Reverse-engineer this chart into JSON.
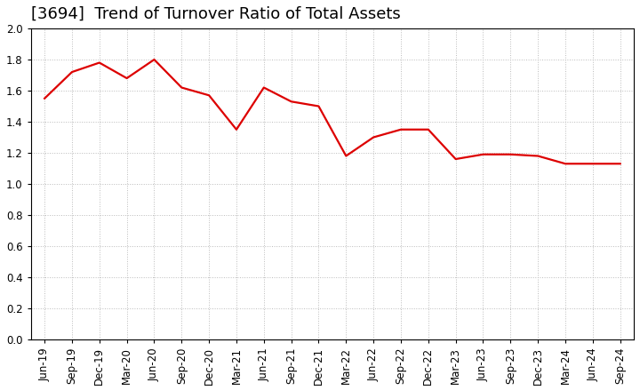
{
  "title": "[3694]  Trend of Turnover Ratio of Total Assets",
  "labels": [
    "Jun-19",
    "Sep-19",
    "Dec-19",
    "Mar-20",
    "Jun-20",
    "Sep-20",
    "Dec-20",
    "Mar-21",
    "Jun-21",
    "Sep-21",
    "Dec-21",
    "Mar-22",
    "Jun-22",
    "Sep-22",
    "Dec-22",
    "Mar-23",
    "Jun-23",
    "Sep-23",
    "Dec-23",
    "Mar-24",
    "Jun-24",
    "Sep-24"
  ],
  "values": [
    1.55,
    1.72,
    1.78,
    1.68,
    1.8,
    1.62,
    1.57,
    1.35,
    1.62,
    1.53,
    1.5,
    1.18,
    1.3,
    1.35,
    1.35,
    1.16,
    1.19,
    1.19,
    1.18,
    1.13,
    1.13,
    1.13
  ],
  "line_color": "#dd0000",
  "line_width": 1.6,
  "background_color": "#ffffff",
  "plot_bg_color": "#ffffff",
  "grid_color": "#bbbbbb",
  "ylim": [
    0.0,
    2.0
  ],
  "yticks": [
    0.0,
    0.2,
    0.4,
    0.6,
    0.8,
    1.0,
    1.2,
    1.4,
    1.6,
    1.8,
    2.0
  ],
  "title_fontsize": 13,
  "tick_fontsize": 8.5,
  "title_color": "#000000",
  "title_fontweight": "normal"
}
